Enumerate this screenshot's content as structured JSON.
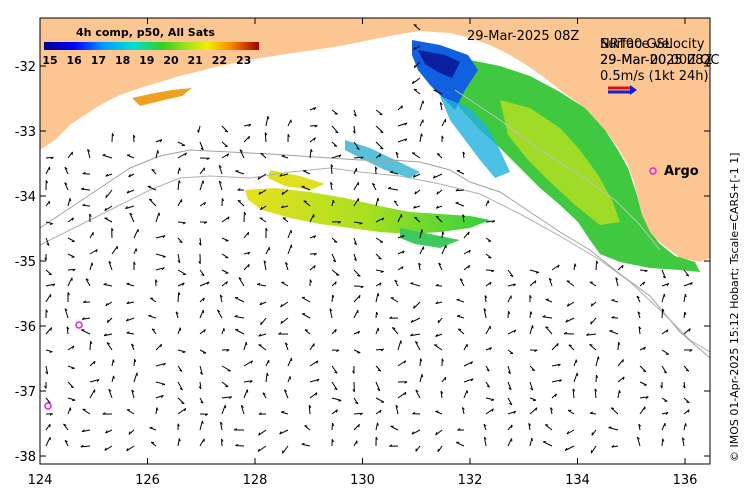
{
  "map": {
    "title_date": "29-Mar-2025 08Z",
    "legend_line1": "NRT00 GSL",
    "legend_line2": "29-Mar 00,00Z QC",
    "legend_overlap1": "Surface velocity",
    "legend_overlap2": "29-Mar-2025 08Z",
    "speed_scale_label": "0.5m/s (1kt 24h)",
    "colorbar_title": "4h comp, p50, All Sats",
    "colorbar_ticks": [
      "15",
      "16",
      "17",
      "18",
      "19",
      "20",
      "21",
      "22",
      "23"
    ],
    "argo_label": "Argo",
    "side_caption": "© IMOS 01-Apr-2025 15:12 Hobart; Tscale=CARS+[-1 1]",
    "x_ticks": [
      "124",
      "126",
      "128",
      "130",
      "132",
      "134",
      "136"
    ],
    "y_ticks": [
      "-32",
      "-33",
      "-34",
      "-35",
      "-36",
      "-37",
      "-38"
    ],
    "colors": {
      "land": "#fcc693",
      "argo": "#e020e0",
      "arrow_red": "#e01010",
      "arrow_blue": "#1020d0"
    }
  }
}
